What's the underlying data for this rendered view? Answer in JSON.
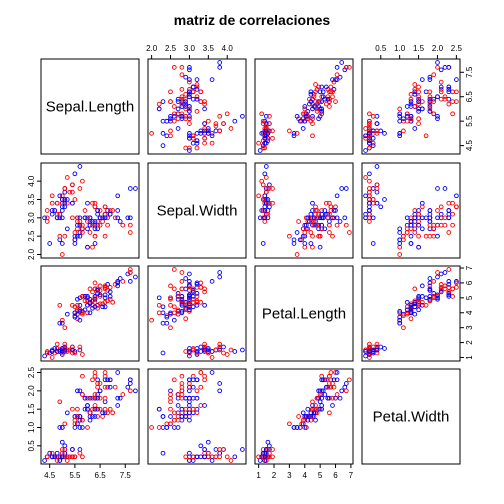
{
  "chart_data": {
    "type": "scatter",
    "title": "matriz de correlaciones",
    "variables": [
      "Sepal.Length",
      "Sepal.Width",
      "Petal.Length",
      "Petal.Width"
    ],
    "axes": {
      "Sepal.Length": {
        "range": [
          4.3,
          7.9
        ],
        "ticks": [
          4.5,
          5.5,
          6.5,
          7.5
        ],
        "tick_labels": [
          "4.5",
          "5.5",
          "6.5",
          "7.5"
        ]
      },
      "Sepal.Width": {
        "range": [
          2.0,
          4.4
        ],
        "ticks": [
          2.0,
          2.5,
          3.0,
          3.5,
          4.0
        ],
        "tick_labels": [
          "2.0",
          "2.5",
          "3.0",
          "3.5",
          "4.0"
        ]
      },
      "Petal.Length": {
        "range": [
          1.0,
          6.9
        ],
        "ticks": [
          1,
          2,
          3,
          4,
          5,
          6,
          7
        ],
        "tick_labels": [
          "1",
          "2",
          "3",
          "4",
          "5",
          "6",
          "7"
        ]
      },
      "Petal.Width": {
        "range": [
          0.1,
          2.5
        ],
        "ticks": [
          0.5,
          1.0,
          1.5,
          2.0,
          2.5
        ],
        "tick_labels": [
          "0.5",
          "1.0",
          "1.5",
          "2.0",
          "2.5"
        ]
      }
    },
    "colors": [
      "#ff0000",
      "#0000ff"
    ],
    "point_style": "open-circle",
    "observations": [
      [
        5.1,
        3.5,
        1.4,
        0.2
      ],
      [
        4.9,
        3.0,
        1.4,
        0.2
      ],
      [
        4.7,
        3.2,
        1.3,
        0.2
      ],
      [
        4.6,
        3.1,
        1.5,
        0.2
      ],
      [
        5.0,
        3.6,
        1.4,
        0.2
      ],
      [
        5.4,
        3.9,
        1.7,
        0.4
      ],
      [
        4.6,
        3.4,
        1.4,
        0.3
      ],
      [
        5.0,
        3.4,
        1.5,
        0.2
      ],
      [
        4.4,
        2.9,
        1.4,
        0.2
      ],
      [
        4.9,
        3.1,
        1.5,
        0.1
      ],
      [
        5.4,
        3.7,
        1.5,
        0.2
      ],
      [
        4.8,
        3.4,
        1.6,
        0.2
      ],
      [
        4.8,
        3.0,
        1.4,
        0.1
      ],
      [
        4.3,
        3.0,
        1.1,
        0.1
      ],
      [
        5.8,
        4.0,
        1.2,
        0.2
      ],
      [
        5.7,
        4.4,
        1.5,
        0.4
      ],
      [
        5.4,
        3.9,
        1.3,
        0.4
      ],
      [
        5.1,
        3.5,
        1.4,
        0.3
      ],
      [
        5.7,
        3.8,
        1.7,
        0.3
      ],
      [
        5.1,
        3.8,
        1.5,
        0.3
      ],
      [
        5.4,
        3.4,
        1.7,
        0.2
      ],
      [
        5.1,
        3.7,
        1.5,
        0.4
      ],
      [
        4.6,
        3.6,
        1.0,
        0.2
      ],
      [
        5.1,
        3.3,
        1.7,
        0.5
      ],
      [
        4.8,
        3.4,
        1.9,
        0.2
      ],
      [
        5.0,
        3.0,
        1.6,
        0.2
      ],
      [
        5.0,
        3.4,
        1.6,
        0.4
      ],
      [
        5.2,
        3.5,
        1.5,
        0.2
      ],
      [
        5.2,
        3.4,
        1.4,
        0.2
      ],
      [
        4.7,
        3.2,
        1.6,
        0.2
      ],
      [
        4.8,
        3.1,
        1.6,
        0.2
      ],
      [
        5.4,
        3.4,
        1.5,
        0.4
      ],
      [
        5.2,
        4.1,
        1.5,
        0.1
      ],
      [
        5.5,
        4.2,
        1.4,
        0.2
      ],
      [
        4.9,
        3.1,
        1.5,
        0.2
      ],
      [
        5.0,
        3.2,
        1.2,
        0.2
      ],
      [
        5.5,
        3.5,
        1.3,
        0.2
      ],
      [
        4.9,
        3.6,
        1.4,
        0.1
      ],
      [
        4.4,
        3.0,
        1.3,
        0.2
      ],
      [
        5.1,
        3.4,
        1.5,
        0.2
      ],
      [
        5.0,
        3.5,
        1.3,
        0.3
      ],
      [
        4.5,
        2.3,
        1.3,
        0.3
      ],
      [
        4.4,
        3.2,
        1.3,
        0.2
      ],
      [
        5.0,
        3.5,
        1.6,
        0.6
      ],
      [
        5.1,
        3.8,
        1.9,
        0.4
      ],
      [
        4.8,
        3.0,
        1.4,
        0.3
      ],
      [
        5.1,
        3.8,
        1.6,
        0.2
      ],
      [
        4.6,
        3.2,
        1.4,
        0.2
      ],
      [
        5.3,
        3.7,
        1.5,
        0.2
      ],
      [
        5.0,
        3.3,
        1.4,
        0.2
      ],
      [
        7.0,
        3.2,
        4.7,
        1.4
      ],
      [
        6.4,
        3.2,
        4.5,
        1.5
      ],
      [
        6.9,
        3.1,
        4.9,
        1.5
      ],
      [
        5.5,
        2.3,
        4.0,
        1.3
      ],
      [
        6.5,
        2.8,
        4.6,
        1.5
      ],
      [
        5.7,
        2.8,
        4.5,
        1.3
      ],
      [
        6.3,
        3.3,
        4.7,
        1.6
      ],
      [
        4.9,
        2.4,
        3.3,
        1.0
      ],
      [
        6.6,
        2.9,
        4.6,
        1.3
      ],
      [
        5.2,
        2.7,
        3.9,
        1.4
      ],
      [
        5.0,
        2.0,
        3.5,
        1.0
      ],
      [
        5.9,
        3.0,
        4.2,
        1.5
      ],
      [
        6.0,
        2.2,
        4.0,
        1.0
      ],
      [
        6.1,
        2.9,
        4.7,
        1.4
      ],
      [
        5.6,
        2.9,
        3.6,
        1.3
      ],
      [
        6.7,
        3.1,
        4.4,
        1.4
      ],
      [
        5.6,
        3.0,
        4.5,
        1.5
      ],
      [
        5.8,
        2.7,
        4.1,
        1.0
      ],
      [
        6.2,
        2.2,
        4.5,
        1.5
      ],
      [
        5.6,
        2.5,
        3.9,
        1.1
      ],
      [
        5.9,
        3.2,
        4.8,
        1.8
      ],
      [
        6.1,
        2.8,
        4.0,
        1.3
      ],
      [
        6.3,
        2.5,
        4.9,
        1.5
      ],
      [
        6.1,
        2.8,
        4.7,
        1.2
      ],
      [
        6.4,
        2.9,
        4.3,
        1.3
      ],
      [
        6.6,
        3.0,
        4.4,
        1.4
      ],
      [
        6.8,
        2.8,
        4.8,
        1.4
      ],
      [
        6.7,
        3.0,
        5.0,
        1.7
      ],
      [
        6.0,
        2.9,
        4.5,
        1.5
      ],
      [
        5.7,
        2.6,
        3.5,
        1.0
      ],
      [
        5.5,
        2.4,
        3.8,
        1.1
      ],
      [
        5.5,
        2.4,
        3.7,
        1.0
      ],
      [
        5.8,
        2.7,
        3.9,
        1.2
      ],
      [
        6.0,
        2.7,
        5.1,
        1.6
      ],
      [
        5.4,
        3.0,
        4.5,
        1.5
      ],
      [
        6.0,
        3.4,
        4.5,
        1.6
      ],
      [
        6.7,
        3.1,
        4.7,
        1.5
      ],
      [
        6.3,
        2.3,
        4.4,
        1.3
      ],
      [
        5.6,
        3.0,
        4.1,
        1.3
      ],
      [
        5.5,
        2.5,
        4.0,
        1.3
      ],
      [
        5.5,
        2.6,
        4.4,
        1.2
      ],
      [
        6.1,
        3.0,
        4.6,
        1.4
      ],
      [
        5.8,
        2.6,
        4.0,
        1.2
      ],
      [
        5.0,
        2.3,
        3.3,
        1.0
      ],
      [
        5.6,
        2.7,
        4.2,
        1.3
      ],
      [
        5.7,
        3.0,
        4.2,
        1.2
      ],
      [
        5.7,
        2.9,
        4.2,
        1.3
      ],
      [
        6.2,
        2.9,
        4.3,
        1.3
      ],
      [
        5.1,
        2.5,
        3.0,
        1.1
      ],
      [
        5.7,
        2.8,
        4.1,
        1.3
      ],
      [
        6.3,
        3.3,
        6.0,
        2.5
      ],
      [
        5.8,
        2.7,
        5.1,
        1.9
      ],
      [
        7.1,
        3.0,
        5.9,
        2.1
      ],
      [
        6.3,
        2.9,
        5.6,
        1.8
      ],
      [
        6.5,
        3.0,
        5.8,
        2.2
      ],
      [
        7.6,
        3.0,
        6.6,
        2.1
      ],
      [
        4.9,
        2.5,
        4.5,
        1.7
      ],
      [
        7.3,
        2.9,
        6.3,
        1.8
      ],
      [
        6.7,
        2.5,
        5.8,
        1.8
      ],
      [
        7.2,
        3.6,
        6.1,
        2.5
      ],
      [
        6.5,
        3.2,
        5.1,
        2.0
      ],
      [
        6.4,
        2.7,
        5.3,
        1.9
      ],
      [
        6.8,
        3.0,
        5.5,
        2.1
      ],
      [
        5.7,
        2.5,
        5.0,
        2.0
      ],
      [
        5.8,
        2.8,
        5.1,
        2.4
      ],
      [
        6.4,
        3.2,
        5.3,
        2.3
      ],
      [
        6.5,
        3.0,
        5.5,
        1.8
      ],
      [
        7.7,
        3.8,
        6.7,
        2.2
      ],
      [
        7.7,
        2.6,
        6.9,
        2.3
      ],
      [
        6.0,
        2.2,
        5.0,
        1.5
      ],
      [
        6.9,
        3.2,
        5.7,
        2.3
      ],
      [
        5.6,
        2.8,
        4.9,
        2.0
      ],
      [
        7.7,
        2.8,
        6.7,
        2.0
      ],
      [
        6.3,
        2.7,
        4.9,
        1.8
      ],
      [
        6.7,
        3.3,
        5.7,
        2.1
      ],
      [
        7.2,
        3.2,
        6.0,
        1.8
      ],
      [
        6.2,
        2.8,
        4.8,
        1.8
      ],
      [
        6.1,
        3.0,
        4.9,
        1.8
      ],
      [
        6.4,
        2.8,
        5.6,
        2.1
      ],
      [
        7.2,
        3.0,
        5.8,
        1.6
      ],
      [
        7.4,
        2.8,
        6.1,
        1.9
      ],
      [
        7.9,
        3.8,
        6.4,
        2.0
      ],
      [
        6.4,
        2.8,
        5.6,
        2.2
      ],
      [
        6.3,
        2.8,
        5.1,
        1.5
      ],
      [
        6.1,
        2.6,
        5.6,
        1.4
      ],
      [
        7.7,
        3.0,
        6.1,
        2.3
      ],
      [
        6.3,
        3.4,
        5.6,
        2.4
      ],
      [
        6.4,
        3.1,
        5.5,
        1.8
      ],
      [
        6.0,
        3.0,
        4.8,
        1.8
      ],
      [
        6.9,
        3.1,
        5.4,
        2.1
      ],
      [
        6.7,
        3.1,
        5.6,
        2.4
      ],
      [
        6.9,
        3.1,
        5.1,
        2.3
      ],
      [
        5.8,
        2.7,
        5.1,
        1.9
      ],
      [
        6.8,
        3.2,
        5.9,
        2.3
      ],
      [
        6.7,
        3.3,
        5.7,
        2.5
      ],
      [
        6.7,
        3.0,
        5.2,
        2.3
      ],
      [
        6.3,
        2.5,
        5.0,
        1.9
      ],
      [
        6.5,
        3.0,
        5.2,
        2.0
      ],
      [
        6.2,
        3.4,
        5.4,
        2.3
      ],
      [
        5.9,
        3.0,
        5.1,
        1.8
      ]
    ]
  }
}
